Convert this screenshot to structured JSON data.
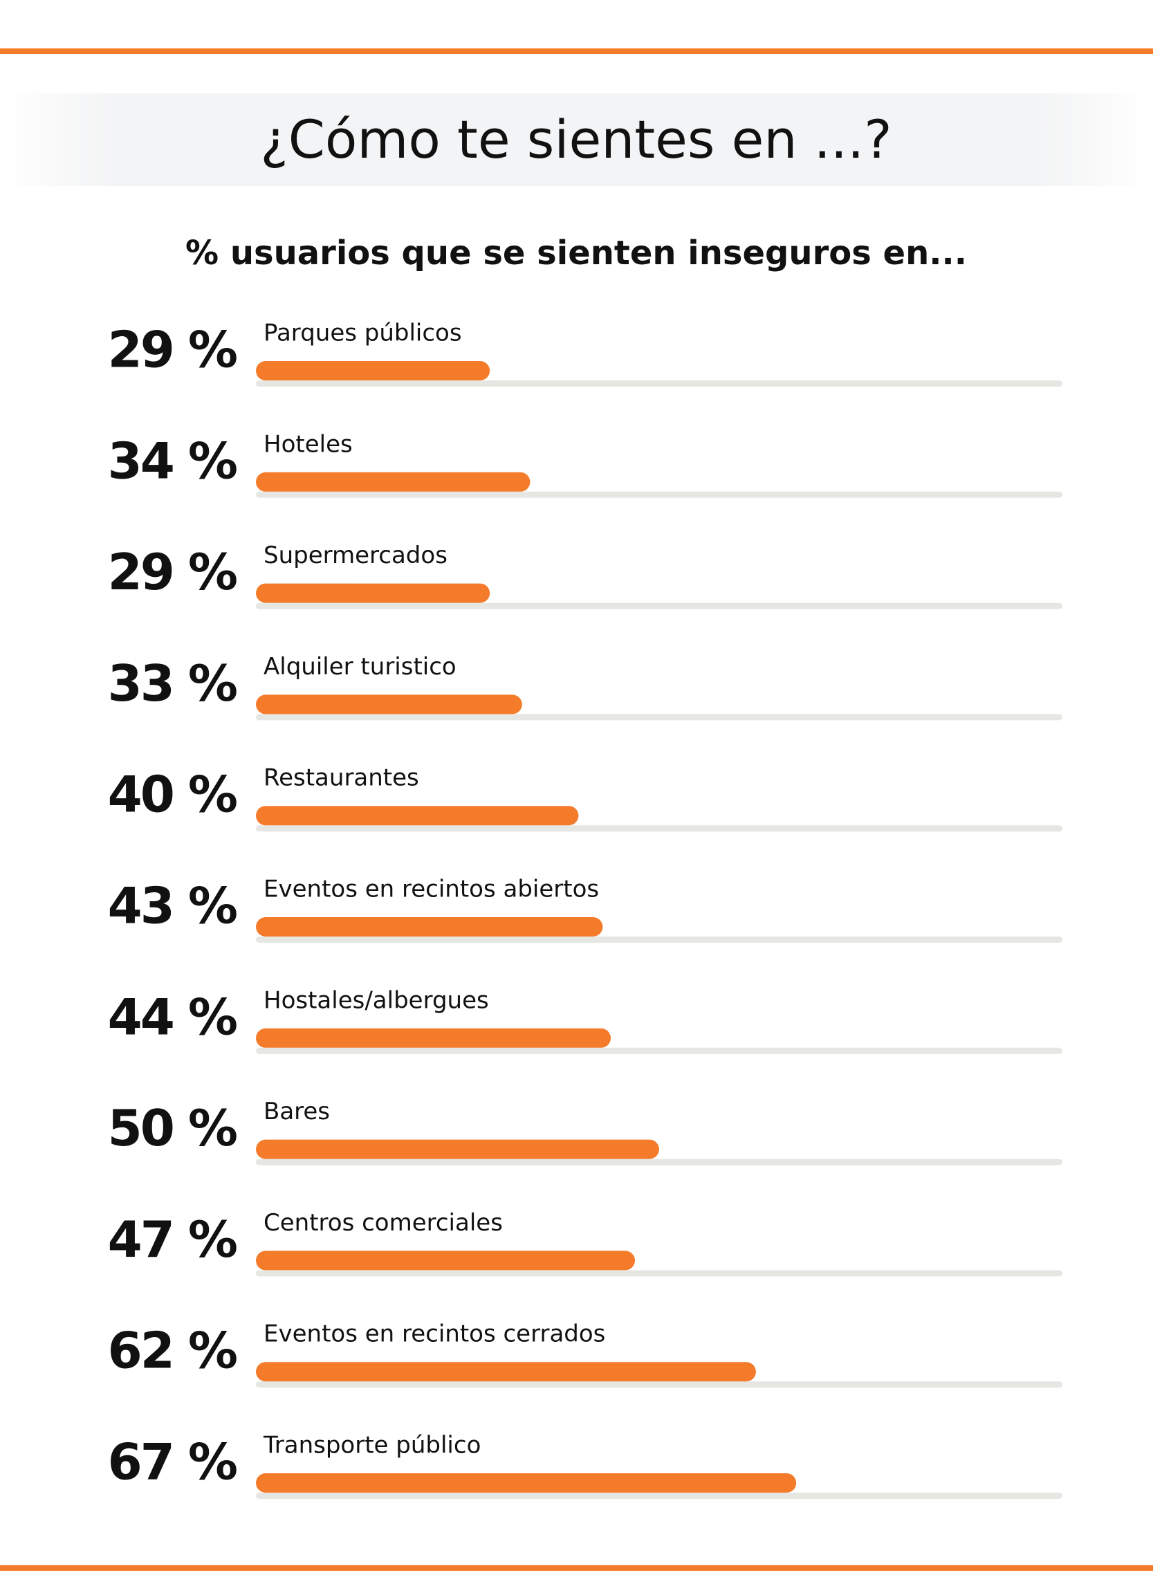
{
  "chart_data": {
    "type": "bar",
    "orientation": "horizontal",
    "title": "¿Cómo te sientes en ...?",
    "subtitle": "% usuarios que se sienten inseguros en...",
    "categories": [
      "Parques públicos",
      "Hoteles",
      "Supermercados",
      "Alquiler turistico",
      "Restaurantes",
      "Eventos en recintos abiertos",
      "Hostales/albergues",
      "Bares",
      "Centros comerciales",
      "Eventos en recintos cerrados",
      "Transporte público"
    ],
    "values": [
      29,
      34,
      29,
      33,
      40,
      43,
      44,
      50,
      47,
      62,
      67
    ],
    "value_labels": [
      "29 %",
      "34 %",
      "29 %",
      "33 %",
      "40 %",
      "43 %",
      "44 %",
      "50 %",
      "47 %",
      "62 %",
      "67 %"
    ],
    "color": "#f47b2a",
    "xlim": [
      0,
      100
    ]
  }
}
